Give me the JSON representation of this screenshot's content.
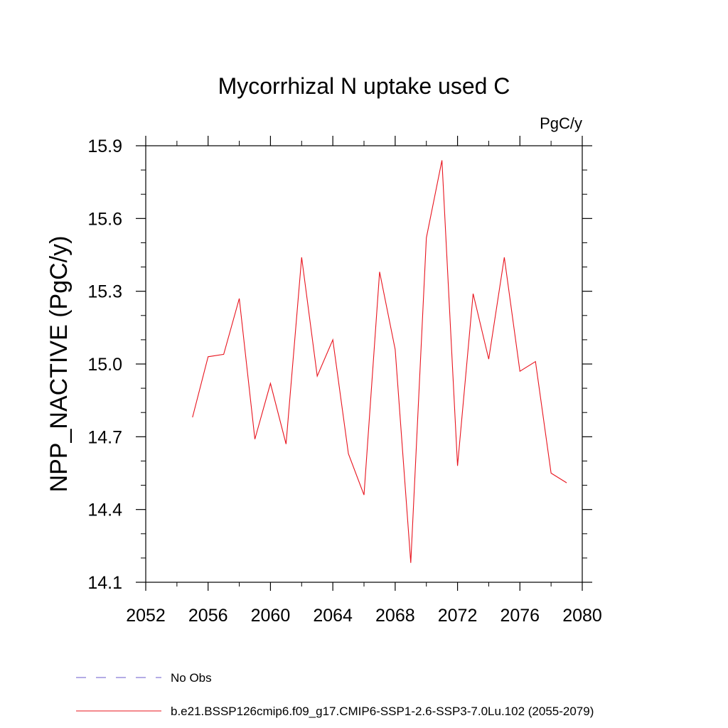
{
  "chart_data": {
    "type": "line",
    "title": "Mycorrhizal N uptake used C",
    "units_label": "PgC/y",
    "xlabel": "",
    "ylabel": "NPP_NACTIVE  (PgC/y)",
    "xlim": [
      2052,
      2080
    ],
    "ylim": [
      14.1,
      15.9
    ],
    "x_ticks": [
      2052,
      2056,
      2060,
      2064,
      2068,
      2072,
      2076,
      2080
    ],
    "x_minor_ticks": [
      2054,
      2058,
      2062,
      2066,
      2070,
      2074,
      2078
    ],
    "y_ticks": [
      14.1,
      14.4,
      14.7,
      15.0,
      15.3,
      15.6,
      15.9
    ],
    "y_minor_step": 0.1,
    "x_tick_labels": [
      "2052",
      "2056",
      "2060",
      "2064",
      "2068",
      "2072",
      "2076",
      "2080"
    ],
    "y_tick_labels": [
      "14.1",
      "14.4",
      "14.7",
      "15.0",
      "15.3",
      "15.6",
      "15.9"
    ],
    "grid": false,
    "legend_placement": "bottom",
    "series": [
      {
        "name": "b.e21.BSSP126cmip6.f09_g17.CMIP6-SSP1-2.6-SSP3-7.0Lu.102 (2055-2079)",
        "color": "#e8141e",
        "style": "solid",
        "x": [
          2055,
          2056,
          2057,
          2058,
          2059,
          2060,
          2061,
          2062,
          2063,
          2064,
          2065,
          2066,
          2067,
          2068,
          2069,
          2070,
          2071,
          2072,
          2073,
          2074,
          2075,
          2076,
          2077,
          2078,
          2079
        ],
        "y": [
          14.78,
          15.03,
          15.04,
          15.27,
          14.69,
          14.92,
          14.67,
          15.44,
          14.95,
          15.1,
          14.63,
          14.46,
          15.38,
          15.06,
          14.18,
          15.52,
          15.84,
          14.58,
          15.29,
          15.02,
          15.44,
          14.97,
          15.01,
          14.55,
          14.51
        ]
      }
    ],
    "legend_entries": [
      {
        "label": "No Obs",
        "color": "#6a5acd",
        "style": "dashed"
      },
      {
        "label": "b.e21.BSSP126cmip6.f09_g17.CMIP6-SSP1-2.6-SSP3-7.0Lu.102 (2055-2079)",
        "color": "#e8141e",
        "style": "solid"
      }
    ]
  }
}
